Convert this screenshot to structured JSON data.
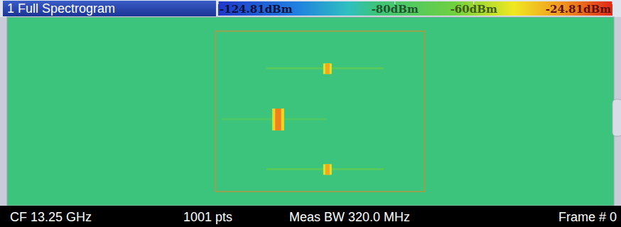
{
  "chart_data": {
    "type": "spectrogram",
    "title": "1 Full Spectrogram",
    "xlim": [
      13.09,
      13.41
    ],
    "ylim": [
      0,
      100
    ],
    "tick_labels": false,
    "noise_floor": -85,
    "color_range": [
      -124.81,
      -24.81
    ],
    "color_ticks": [
      {
        "value": -124.81,
        "label": "-124.81dBm"
      },
      {
        "value": -80,
        "label": "-80dBm"
      },
      {
        "value": -60,
        "label": "-60dBm"
      },
      {
        "value": -24.81,
        "label": "-24.81dBm"
      }
    ],
    "region": {
      "xlim": [
        13.2,
        13.31
      ],
      "ylim": [
        7.5,
        92.5
      ]
    },
    "signals": [
      {
        "x": [
          13.2567,
          13.2612
        ],
        "y": [
          24.6,
          30.2
        ],
        "level": -40
      },
      {
        "x": [
          13.2298,
          13.2361
        ],
        "y": [
          48.5,
          60.1
        ],
        "level": -35
      },
      {
        "x": [
          13.2567,
          13.2612
        ],
        "y": [
          78.0,
          83.6
        ],
        "level": -40
      }
    ],
    "traces": [
      {
        "x": [
          13.2268,
          13.2886
        ],
        "y": 27.2,
        "level": -74
      },
      {
        "x": [
          13.2032,
          13.2586
        ],
        "y": 54.1,
        "level": -78
      },
      {
        "x": [
          13.2268,
          13.2886
        ],
        "y": 80.6,
        "level": -74
      }
    ],
    "status": [
      "CF 13.25 GHz",
      "1001 pts",
      "Meas BW 320.0 MHz",
      "Frame # 0"
    ]
  }
}
